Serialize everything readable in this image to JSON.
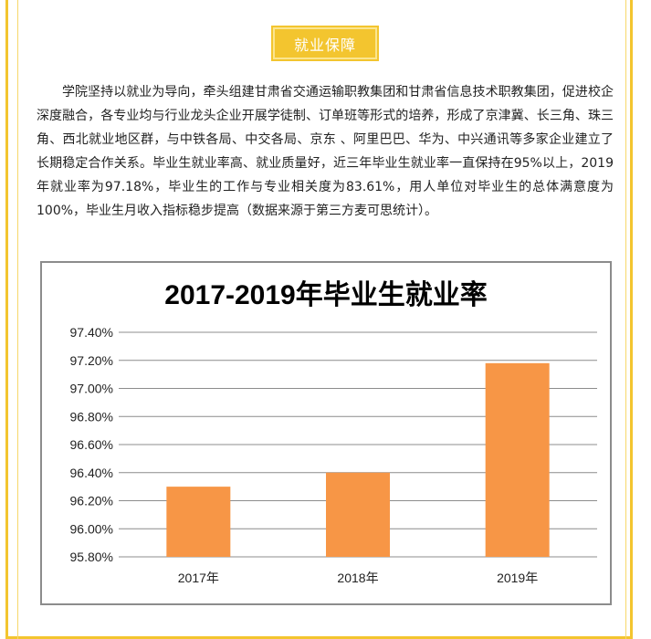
{
  "header": {
    "badge_label": "就业保障"
  },
  "intro_text": "学院坚持以就业为导向，牵头组建甘肃省交通运输职教集团和甘肃省信息技术职教集团，促进校企深度融合，各专业均与行业龙头企业开展学徒制、订单班等形式的培养，形成了京津冀、长三角、珠三角、西北就业地区群，与中铁各局、中交各局、京东 、阿里巴巴、华为、中兴通讯等多家企业建立了长期稳定合作关系。毕业生就业率高、就业质量好，近三年毕业生就业率一直保持在95%以上，2019年就业率为97.18%，毕业生的工作与专业相关度为83.61%，用人单位对毕业生的总体满意度为100%，毕业生月收入指标稳步提高（数据来源于第三方麦可思统计）。",
  "colors": {
    "accent": "#f3c52f",
    "bar": "#f79646",
    "grid": "#8c8c8c"
  },
  "chart_data": {
    "type": "bar",
    "title": "2017-2019年毕业生就业率",
    "categories": [
      "2017年",
      "2018年",
      "2019年"
    ],
    "values": [
      96.3,
      96.4,
      97.18
    ],
    "ylim": [
      95.8,
      97.4
    ],
    "yticks": [
      "97.40%",
      "97.20%",
      "97.00%",
      "96.80%",
      "96.60%",
      "96.40%",
      "96.20%",
      "96.00%",
      "95.80%"
    ],
    "xlabel": "",
    "ylabel": "",
    "grid": true
  }
}
